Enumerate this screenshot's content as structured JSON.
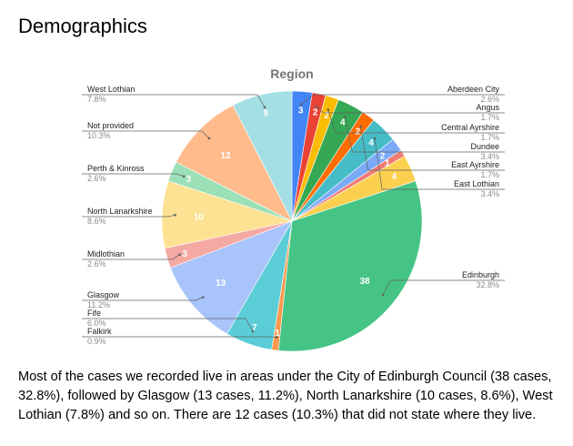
{
  "page": {
    "title": "Demographics",
    "summary": "Most of the cases we recorded live in areas under the City of Edinburgh Council (38 cases, 32.8%), followed by Glasgow (13 cases, 11.2%), North Lanarkshire (10 cases, 8.6%), West Lothian (7.8%) and so on. There are 12 cases (10.3%) that did not state where they live."
  },
  "chart_data": {
    "type": "pie",
    "title": "Region",
    "legend": "none (leader-line labels)",
    "slices": [
      {
        "label": "Aberdeen City",
        "value": 3,
        "percent": "2.6%",
        "color": "#4285f4"
      },
      {
        "label": "Angus",
        "value": 2,
        "percent": "1.7%",
        "color": "#ea4335"
      },
      {
        "label": "Central Ayrshire",
        "value": 2,
        "percent": "1.7%",
        "color": "#fbbc04"
      },
      {
        "label": "Dundee",
        "value": 4,
        "percent": "3.4%",
        "color": "#34a853"
      },
      {
        "label": "East Ayrshire",
        "value": 2,
        "percent": "1.7%",
        "color": "#ff6d01"
      },
      {
        "label": "East Lothian",
        "value": 4,
        "percent": "3.4%",
        "color": "#46bdc6"
      },
      {
        "label": "",
        "value": 2,
        "percent": "",
        "color": "#7baaf7"
      },
      {
        "label": "",
        "value": 1,
        "percent": "",
        "color": "#f07b72"
      },
      {
        "label": "",
        "value": 4,
        "percent": "",
        "color": "#fcd04f"
      },
      {
        "label": "Edinburgh",
        "value": 38,
        "percent": "32.8%",
        "color": "#45c486"
      },
      {
        "label": "Falkirk",
        "value": 1,
        "percent": "0.9%",
        "color": "#ff994d"
      },
      {
        "label": "Fife",
        "value": 7,
        "percent": "6.0%",
        "color": "#5bcdd6"
      },
      {
        "label": "Glasgow",
        "value": 13,
        "percent": "11.2%",
        "color": "#a8c4fa"
      },
      {
        "label": "Midlothian",
        "value": 3,
        "percent": "2.6%",
        "color": "#f5a9a3"
      },
      {
        "label": "North Lanarkshire",
        "value": 10,
        "percent": "8.6%",
        "color": "#fde293"
      },
      {
        "label": "Perth & Kinross",
        "value": 3,
        "percent": "2.6%",
        "color": "#9be0b6"
      },
      {
        "label": "Not provided",
        "value": 12,
        "percent": "10.3%",
        "color": "#ffbb8c"
      },
      {
        "label": "West Lothian",
        "value": 9,
        "percent": "7.8%",
        "color": "#a3dfe3"
      }
    ]
  }
}
